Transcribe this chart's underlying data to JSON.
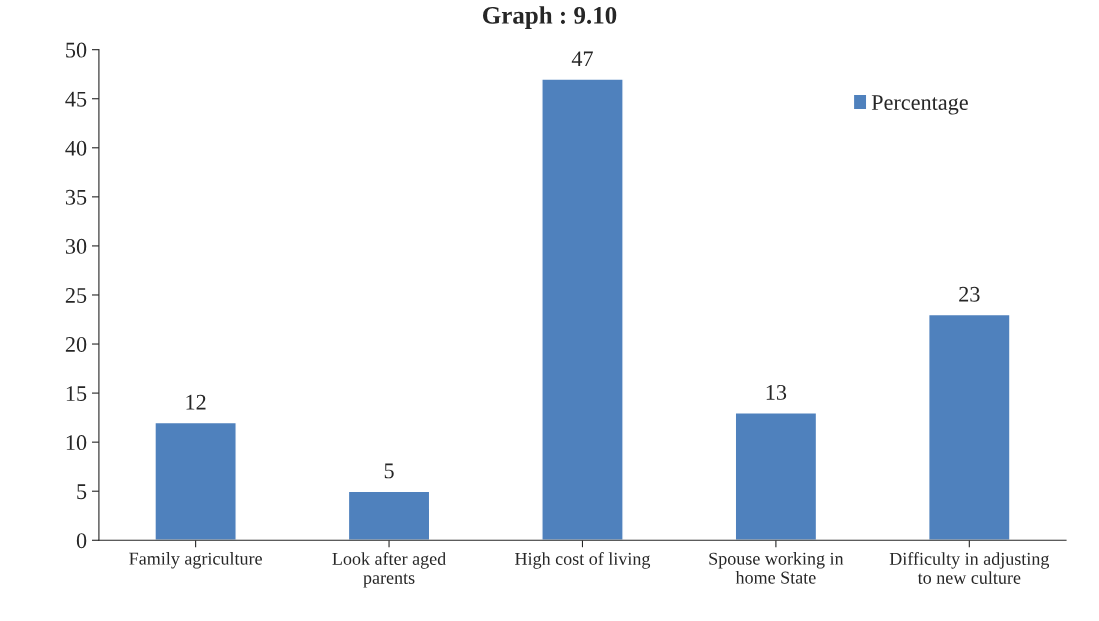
{
  "chart_data": {
    "type": "bar",
    "title": "Graph : 9.10",
    "categories": [
      "Family agriculture",
      "Look after aged\nparents",
      "High cost of living",
      "Spouse working in\nhome State",
      "Difficulty in adjusting\nto new culture"
    ],
    "series": [
      {
        "name": "Percentage",
        "color": "#4f81bd",
        "values": [
          12,
          5,
          47,
          13,
          23
        ]
      }
    ],
    "ylim": [
      0,
      50
    ],
    "yticks": [
      0,
      5,
      10,
      15,
      20,
      25,
      30,
      35,
      40,
      45,
      50
    ],
    "grid": false,
    "legend": "top right",
    "data_labels": true
  }
}
